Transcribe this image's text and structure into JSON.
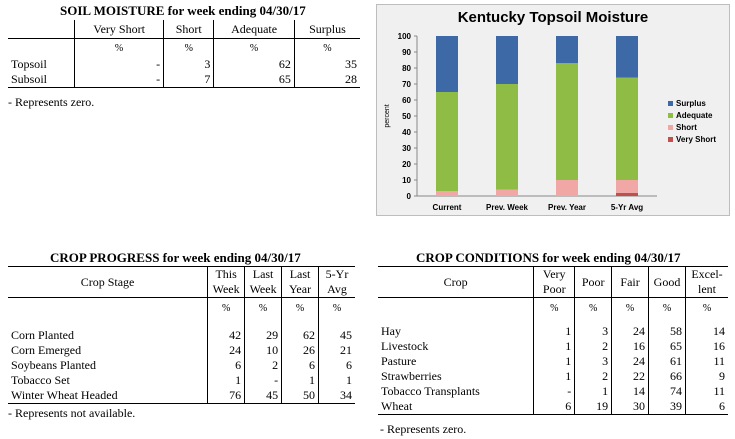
{
  "soil": {
    "title": "SOIL MOISTURE for week ending 04/30/17",
    "headers": [
      "",
      "Very Short",
      "Short",
      "Adequate",
      "Surplus"
    ],
    "unit": "%",
    "rows": [
      {
        "label": "Topsoil",
        "very_short": "-",
        "short": "3",
        "adequate": "62",
        "surplus": "35"
      },
      {
        "label": "Subsoil",
        "very_short": "-",
        "short": "7",
        "adequate": "65",
        "surplus": "28"
      }
    ],
    "note": "- Represents zero."
  },
  "chart_data": {
    "type": "bar",
    "stacked": true,
    "title": "Kentucky Topsoil Moisture",
    "ylabel": "percent",
    "ylim": [
      0,
      100
    ],
    "yticks": [
      "0",
      "10",
      "20",
      "30",
      "40",
      "50",
      "60",
      "70",
      "80",
      "90",
      "100"
    ],
    "categories": [
      "Current",
      "Prev. Week",
      "Prev. Year",
      "5-Yr Avg"
    ],
    "series": [
      {
        "name": "Very Short",
        "color": "#c0504d",
        "values": [
          0,
          0,
          0,
          2
        ]
      },
      {
        "name": "Short",
        "color": "#f2a7a7",
        "values": [
          3,
          4,
          10,
          8
        ]
      },
      {
        "name": "Adequate",
        "color": "#8fbc45",
        "values": [
          62,
          66,
          73,
          64
        ]
      },
      {
        "name": "Surplus",
        "color": "#3d6aa6",
        "values": [
          35,
          30,
          17,
          26
        ]
      }
    ],
    "legend_order": [
      "Surplus",
      "Adequate",
      "Short",
      "Very Short"
    ],
    "legend_position": "right"
  },
  "progress": {
    "title": "CROP PROGRESS for week ending 04/30/17",
    "headers": [
      "Crop Stage",
      "This Week",
      "Last Week",
      "Last Year",
      "5-Yr Avg"
    ],
    "unit": "%",
    "rows": [
      {
        "label": "Corn Planted",
        "v": [
          "42",
          "29",
          "62",
          "45"
        ]
      },
      {
        "label": "Corn Emerged",
        "v": [
          "24",
          "10",
          "26",
          "21"
        ]
      },
      {
        "label": "Soybeans Planted",
        "v": [
          "6",
          "2",
          "6",
          "6"
        ]
      },
      {
        "label": "Tobacco Set",
        "v": [
          "1",
          "-",
          "1",
          "1"
        ]
      },
      {
        "label": "Winter Wheat Headed",
        "v": [
          "76",
          "45",
          "50",
          "34"
        ]
      }
    ],
    "note": "- Represents not available."
  },
  "conditions": {
    "title": "CROP CONDITIONS for week ending 04/30/17",
    "headers": [
      "Crop",
      "Very Poor",
      "Poor",
      "Fair",
      "Good",
      "Excel- lent"
    ],
    "unit": "%",
    "rows": [
      {
        "label": "Hay",
        "v": [
          "1",
          "3",
          "24",
          "58",
          "14"
        ]
      },
      {
        "label": "Livestock",
        "v": [
          "1",
          "2",
          "16",
          "65",
          "16"
        ]
      },
      {
        "label": "Pasture",
        "v": [
          "1",
          "3",
          "24",
          "61",
          "11"
        ]
      },
      {
        "label": "Strawberries",
        "v": [
          "1",
          "2",
          "22",
          "66",
          "9"
        ]
      },
      {
        "label": "Tobacco Transplants",
        "v": [
          "-",
          "1",
          "14",
          "74",
          "11"
        ]
      },
      {
        "label": "Wheat",
        "v": [
          "6",
          "19",
          "30",
          "39",
          "6"
        ]
      }
    ],
    "note": "- Represents zero."
  }
}
